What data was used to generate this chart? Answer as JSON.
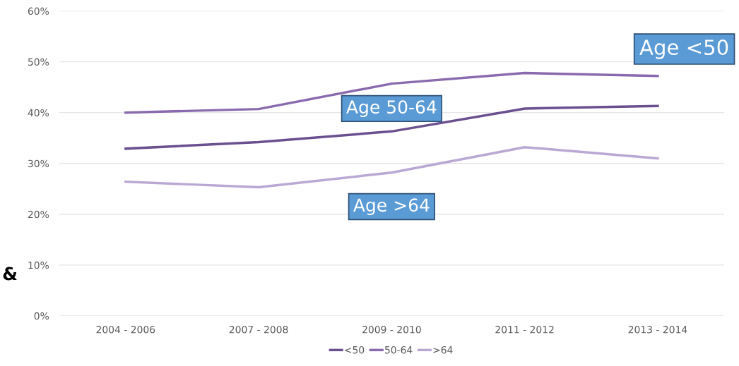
{
  "chart_data": {
    "type": "line",
    "categories": [
      "2004 - 2006",
      "2007 - 2008",
      "2009 - 2010",
      "2011 - 2012",
      "2013 - 2014"
    ],
    "series": [
      {
        "name": "<50",
        "color": "#6b5090",
        "values": [
          32.9,
          34.2,
          36.3,
          40.8,
          41.3
        ]
      },
      {
        "name": "50-64",
        "color": "#8a6aae",
        "values": [
          40.0,
          40.7,
          45.7,
          47.8,
          47.2
        ]
      },
      {
        "name": ">64",
        "color": "#b9a8d3",
        "values": [
          26.4,
          25.3,
          28.2,
          33.2,
          31.0
        ]
      }
    ],
    "ylim": [
      0,
      60
    ],
    "yticks": [
      {
        "value": 0,
        "label": "0%"
      },
      {
        "value": 10,
        "label": "10%"
      },
      {
        "value": 20,
        "label": "20%"
      },
      {
        "value": 30,
        "label": "30%"
      },
      {
        "value": 40,
        "label": "40%"
      },
      {
        "value": 50,
        "label": "50%"
      },
      {
        "value": 60,
        "label": "60%"
      }
    ],
    "grid": "y",
    "legend": "bottom",
    "marker": "none",
    "line_style": "solid",
    "annotations": [
      "Age <50",
      "Age 50-64",
      "Age >64",
      "&"
    ]
  }
}
